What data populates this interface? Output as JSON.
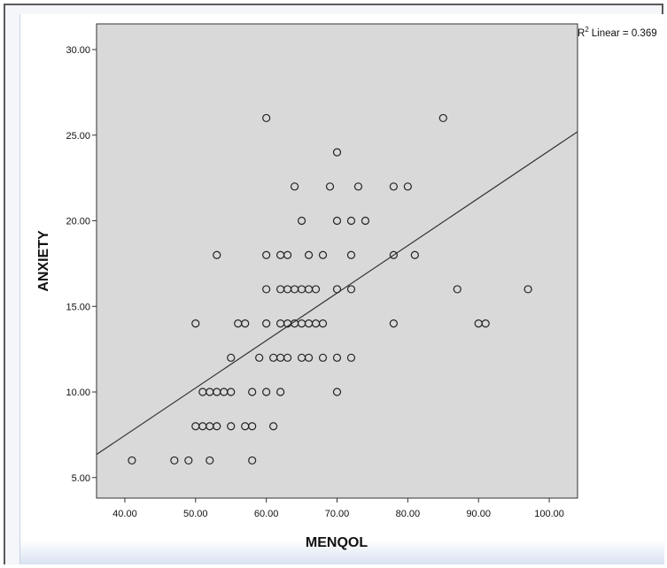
{
  "chart_data": {
    "type": "scatter",
    "xlabel": "MENQOL",
    "ylabel": "ANXIETY",
    "xlim": [
      36.0,
      104.0
    ],
    "ylim": [
      3.8,
      31.5
    ],
    "x_ticks": [
      "40.00",
      "50.00",
      "60.00",
      "70.00",
      "80.00",
      "90.00",
      "100.00"
    ],
    "y_ticks": [
      "5.00",
      "10.00",
      "15.00",
      "20.00",
      "25.00",
      "30.00"
    ],
    "fit_line": {
      "label": "Linear = 0.369",
      "label_prefix": "R",
      "label_sup": "2",
      "x1": 36.0,
      "y1": 6.35,
      "x2": 104.0,
      "y2": 25.2
    },
    "points": [
      [
        41,
        6
      ],
      [
        47,
        6
      ],
      [
        49,
        6
      ],
      [
        52,
        6
      ],
      [
        58,
        6
      ],
      [
        50,
        8
      ],
      [
        51,
        8
      ],
      [
        52,
        8
      ],
      [
        53,
        8
      ],
      [
        55,
        8
      ],
      [
        57,
        8
      ],
      [
        58,
        8
      ],
      [
        61,
        8
      ],
      [
        51,
        10
      ],
      [
        52,
        10
      ],
      [
        53,
        10
      ],
      [
        54,
        10
      ],
      [
        55,
        10
      ],
      [
        58,
        10
      ],
      [
        60,
        10
      ],
      [
        62,
        10
      ],
      [
        70,
        10
      ],
      [
        55,
        12
      ],
      [
        59,
        12
      ],
      [
        61,
        12
      ],
      [
        62,
        12
      ],
      [
        63,
        12
      ],
      [
        65,
        12
      ],
      [
        66,
        12
      ],
      [
        68,
        12
      ],
      [
        70,
        12
      ],
      [
        72,
        12
      ],
      [
        50,
        14
      ],
      [
        56,
        14
      ],
      [
        57,
        14
      ],
      [
        60,
        14
      ],
      [
        62,
        14
      ],
      [
        63,
        14
      ],
      [
        64,
        14
      ],
      [
        65,
        14
      ],
      [
        66,
        14
      ],
      [
        67,
        14
      ],
      [
        68,
        14
      ],
      [
        78,
        14
      ],
      [
        90,
        14
      ],
      [
        91,
        14
      ],
      [
        60,
        16
      ],
      [
        62,
        16
      ],
      [
        63,
        16
      ],
      [
        64,
        16
      ],
      [
        65,
        16
      ],
      [
        66,
        16
      ],
      [
        67,
        16
      ],
      [
        70,
        16
      ],
      [
        72,
        16
      ],
      [
        87,
        16
      ],
      [
        97,
        16
      ],
      [
        53,
        18
      ],
      [
        60,
        18
      ],
      [
        62,
        18
      ],
      [
        63,
        18
      ],
      [
        66,
        18
      ],
      [
        68,
        18
      ],
      [
        72,
        18
      ],
      [
        78,
        18
      ],
      [
        81,
        18
      ],
      [
        65,
        20
      ],
      [
        70,
        20
      ],
      [
        72,
        20
      ],
      [
        74,
        20
      ],
      [
        64,
        22
      ],
      [
        69,
        22
      ],
      [
        73,
        22
      ],
      [
        78,
        22
      ],
      [
        80,
        22
      ],
      [
        70,
        24
      ],
      [
        60,
        26
      ],
      [
        85,
        26
      ]
    ]
  }
}
